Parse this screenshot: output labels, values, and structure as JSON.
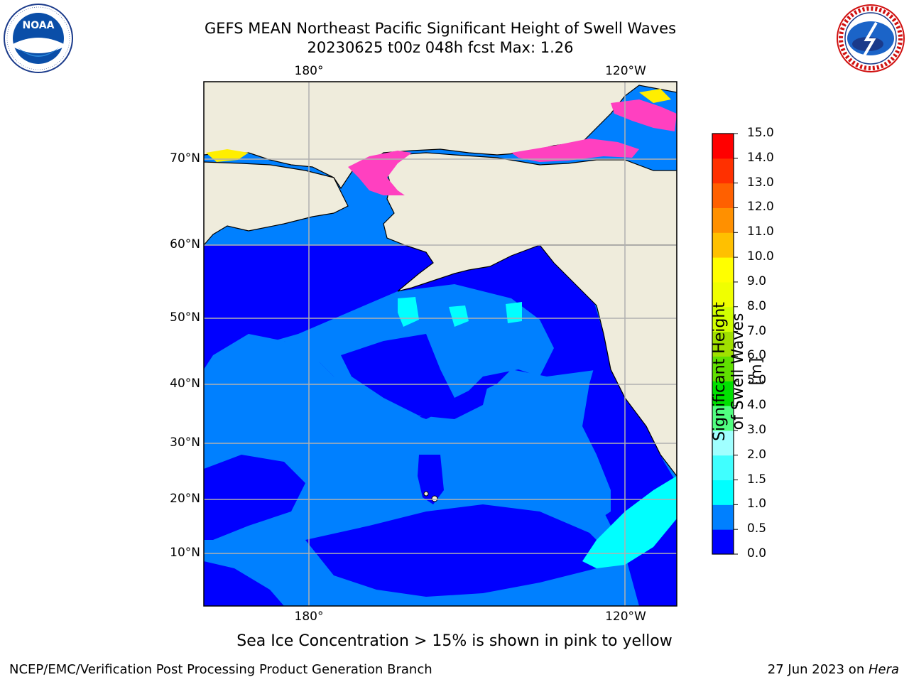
{
  "header": {
    "title_line1": "GEFS MEAN Northeast Pacific Significant Height of Swell Waves",
    "title_line2": "20230625 t00z 048h fcst   Max: 1.26"
  },
  "logos": {
    "left": "NOAA",
    "left_ring_text": "NATIONAL OCEANIC AND ATMOSPHERIC ADMINISTRATION · U.S. DEPARTMENT OF COMMERCE",
    "right_ring_text": "NATIONAL WEATHER SERVICE"
  },
  "map": {
    "lon_labels": [
      "180°",
      "120°W"
    ],
    "lat_labels": [
      "70°N",
      "60°N",
      "50°N",
      "40°N",
      "30°N",
      "20°N",
      "10°N"
    ],
    "colors": {
      "land": "#efecdc",
      "ocean_low": "#0000ff",
      "ocean_mid": "#0080ff",
      "cyan": "#00ffff",
      "ice_pink": "#ff40c0",
      "ice_yellow": "#ffee00",
      "grid": "#b0b0b0"
    }
  },
  "colorbar": {
    "ticks": [
      "15.0",
      "14.0",
      "13.0",
      "12.0",
      "11.0",
      "10.0",
      "9.0",
      "8.0",
      "7.0",
      "6.0",
      "5.0",
      "4.0",
      "3.0",
      "2.0",
      "1.5",
      "1.0",
      "0.5",
      "0.0"
    ],
    "colors": [
      "#0000ff",
      "#0080ff",
      "#00ffff",
      "#40ffff",
      "#a0ffff",
      "#50ff80",
      "#00e000",
      "#60e000",
      "#a0e000",
      "#d0ff00",
      "#f0ff00",
      "#ffff00",
      "#ffc000",
      "#ff9000",
      "#ff6000",
      "#ff3000",
      "#ff0000"
    ],
    "title": "Significant Height of Swell Waves [m]"
  },
  "caption": "Sea Ice Concentration > 15% is shown in pink to yellow",
  "footer": {
    "left": "NCEP/EMC/Verification Post Processing Product Generation Branch",
    "date": "27 Jun 2023 on ",
    "machine": "Hera"
  }
}
